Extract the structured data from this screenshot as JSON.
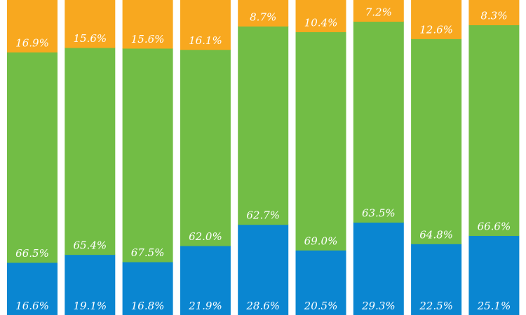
{
  "chart_data": {
    "type": "bar",
    "stacked": true,
    "normalized_percent": true,
    "categories": [
      "",
      "",
      "",
      "",
      "",
      "",
      "",
      "",
      ""
    ],
    "series": [
      {
        "values": [
          16.6,
          19.1,
          16.8,
          21.9,
          28.6,
          20.5,
          29.3,
          22.5,
          25.1
        ],
        "labels": [
          "16.6%",
          "19.1%",
          "16.8%",
          "21.9%",
          "28.6%",
          "20.5%",
          "29.3%",
          "22.5%",
          "25.1%"
        ]
      },
      {
        "values": [
          66.5,
          65.4,
          67.5,
          62.0,
          62.7,
          69.0,
          63.5,
          64.8,
          66.6
        ],
        "labels": [
          "66.5%",
          "65.4%",
          "67.5%",
          "62.0%",
          "62.7%",
          "69.0%",
          "63.5%",
          "64.8%",
          "66.6%"
        ]
      },
      {
        "values": [
          16.9,
          15.6,
          15.6,
          16.1,
          8.7,
          10.4,
          7.2,
          12.6,
          8.3
        ],
        "labels": [
          "16.9%",
          "15.6%",
          "15.6%",
          "16.1%",
          "8.7%",
          "10.4%",
          "7.2%",
          "12.6%",
          "8.3%"
        ]
      },
      {
        "values": [
          0,
          0,
          0,
          0.8,
          0,
          0,
          0,
          0,
          0
        ],
        "labels": [
          "",
          "",
          "",
          "",
          "",
          "",
          "",
          "",
          ""
        ]
      }
    ],
    "colors": [
      "#0a86d1",
      "#72bd45",
      "#f8a81f",
      "#e8202a"
    ],
    "ylim": [
      0,
      100
    ],
    "grid": false,
    "legend": "none"
  }
}
